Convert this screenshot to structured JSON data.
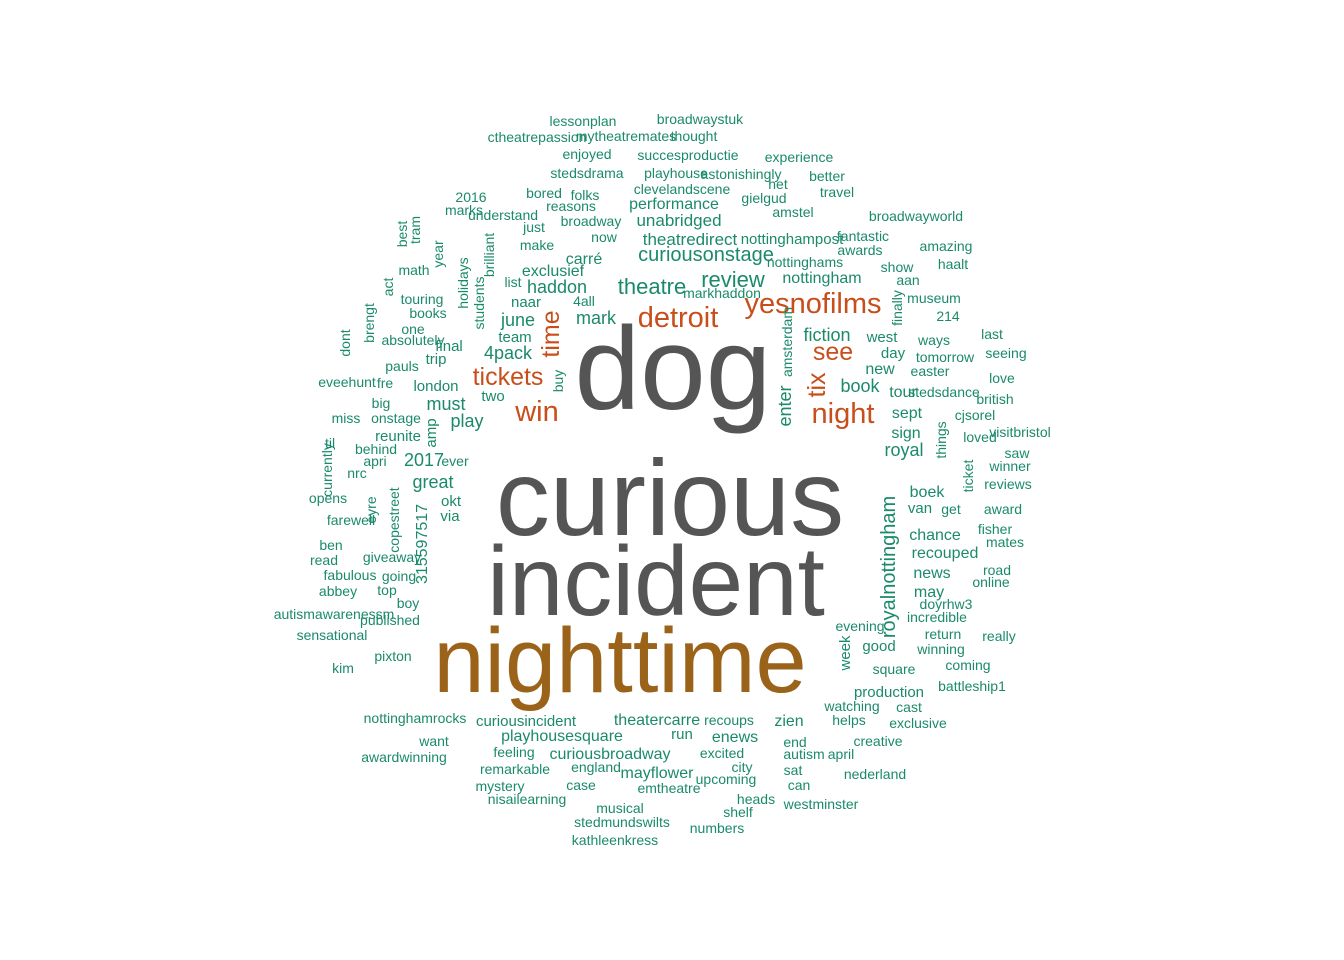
{
  "colors": {
    "grey": "#555555",
    "brown": "#9a6319",
    "orange": "#c84e1b",
    "green": "#1b8a6b"
  },
  "words": [
    {
      "text": "dog",
      "color": "grey"
    },
    {
      "text": "curious",
      "color": "grey"
    },
    {
      "text": "incident",
      "color": "grey"
    },
    {
      "text": "nighttime",
      "color": "brown"
    },
    {
      "text": "detroit",
      "color": "orange"
    },
    {
      "text": "yesnofilms",
      "color": "orange"
    },
    {
      "text": "win",
      "color": "orange"
    },
    {
      "text": "night",
      "color": "orange"
    },
    {
      "text": "see",
      "color": "orange"
    },
    {
      "text": "tickets",
      "color": "orange"
    },
    {
      "text": "time",
      "color": "orange"
    },
    {
      "text": "tix",
      "color": "orange"
    },
    {
      "text": "theatre",
      "color": "green"
    },
    {
      "text": "review",
      "color": "green"
    },
    {
      "text": "curiousonstage",
      "color": "green"
    },
    {
      "text": "royalnottingham",
      "color": "green"
    },
    {
      "text": "haddon",
      "color": "green"
    },
    {
      "text": "mark",
      "color": "green"
    },
    {
      "text": "june",
      "color": "green"
    },
    {
      "text": "4pack",
      "color": "green"
    },
    {
      "text": "fiction",
      "color": "green"
    },
    {
      "text": "book",
      "color": "green"
    },
    {
      "text": "enter",
      "color": "green"
    },
    {
      "text": "must",
      "color": "green"
    },
    {
      "text": "play",
      "color": "green"
    },
    {
      "text": "great",
      "color": "green"
    },
    {
      "text": "2017",
      "color": "green"
    },
    {
      "text": "royal",
      "color": "green"
    },
    {
      "text": "theatredirect",
      "color": "green"
    },
    {
      "text": "unabridged",
      "color": "green"
    },
    {
      "text": "performance",
      "color": "green"
    },
    {
      "text": "carré",
      "color": "green"
    },
    {
      "text": "exclusief",
      "color": "green"
    },
    {
      "text": "nottingham",
      "color": "green"
    },
    {
      "text": "theatercarre",
      "color": "green"
    },
    {
      "text": "curiousincident",
      "color": "green"
    },
    {
      "text": "playhousesquare",
      "color": "green"
    },
    {
      "text": "curiousbroadway",
      "color": "green"
    },
    {
      "text": "zien",
      "color": "green"
    },
    {
      "text": "enews",
      "color": "green"
    },
    {
      "text": "mayflower",
      "color": "green"
    },
    {
      "text": "315597517",
      "color": "green"
    },
    {
      "text": "boek",
      "color": "green"
    },
    {
      "text": "chance",
      "color": "green"
    },
    {
      "text": "recouped",
      "color": "green"
    },
    {
      "text": "news",
      "color": "green"
    },
    {
      "text": "may",
      "color": "green"
    },
    {
      "text": "production",
      "color": "green"
    },
    {
      "text": "good",
      "color": "green"
    },
    {
      "text": "week",
      "color": "green"
    },
    {
      "text": "sign",
      "color": "green"
    },
    {
      "text": "sept",
      "color": "green"
    },
    {
      "text": "tour",
      "color": "green"
    },
    {
      "text": "new",
      "color": "green"
    },
    {
      "text": "day",
      "color": "green"
    },
    {
      "text": "west",
      "color": "green"
    },
    {
      "text": "van",
      "color": "green"
    },
    {
      "text": "get",
      "color": "green"
    },
    {
      "text": "okt",
      "color": "green"
    },
    {
      "text": "via",
      "color": "green"
    },
    {
      "text": "reunite",
      "color": "green"
    },
    {
      "text": "amp",
      "color": "green"
    },
    {
      "text": "two",
      "color": "green"
    },
    {
      "text": "london",
      "color": "green"
    },
    {
      "text": "final",
      "color": "green"
    },
    {
      "text": "trip",
      "color": "green"
    },
    {
      "text": "team",
      "color": "green"
    },
    {
      "text": "naar",
      "color": "green"
    },
    {
      "text": "4all",
      "color": "green"
    },
    {
      "text": "list",
      "color": "green"
    },
    {
      "text": "make",
      "color": "green"
    },
    {
      "text": "just",
      "color": "green"
    },
    {
      "text": "now",
      "color": "green"
    },
    {
      "text": "broadway",
      "color": "green"
    },
    {
      "text": "reasons",
      "color": "green"
    },
    {
      "text": "bored",
      "color": "green"
    },
    {
      "text": "folks",
      "color": "green"
    },
    {
      "text": "clevelandscene",
      "color": "green"
    },
    {
      "text": "stedsdrama",
      "color": "green"
    },
    {
      "text": "playhouse",
      "color": "green"
    },
    {
      "text": "enjoyed",
      "color": "green"
    },
    {
      "text": "succesproductie",
      "color": "green"
    },
    {
      "text": "experience",
      "color": "green"
    },
    {
      "text": "ctheatrepassion",
      "color": "green"
    },
    {
      "text": "mytheatremates",
      "color": "green"
    },
    {
      "text": "thought",
      "color": "green"
    },
    {
      "text": "lessonplan",
      "color": "green"
    },
    {
      "text": "broadwaystuk",
      "color": "green"
    },
    {
      "text": "astonishingly",
      "color": "green"
    },
    {
      "text": "het",
      "color": "green"
    },
    {
      "text": "better",
      "color": "green"
    },
    {
      "text": "travel",
      "color": "green"
    },
    {
      "text": "gielgud",
      "color": "green"
    },
    {
      "text": "amstel",
      "color": "green"
    },
    {
      "text": "broadwayworld",
      "color": "green"
    },
    {
      "text": "nottinghampost",
      "color": "green"
    },
    {
      "text": "fantastic",
      "color": "green"
    },
    {
      "text": "awards",
      "color": "green"
    },
    {
      "text": "amazing",
      "color": "green"
    },
    {
      "text": "nottinghams",
      "color": "green"
    },
    {
      "text": "show",
      "color": "green"
    },
    {
      "text": "haalt",
      "color": "green"
    },
    {
      "text": "markhaddon",
      "color": "green"
    },
    {
      "text": "aan",
      "color": "green"
    },
    {
      "text": "museum",
      "color": "green"
    },
    {
      "text": "finally",
      "color": "green"
    },
    {
      "text": "214",
      "color": "green"
    },
    {
      "text": "amsterdam",
      "color": "green"
    },
    {
      "text": "last",
      "color": "green"
    },
    {
      "text": "ways",
      "color": "green"
    },
    {
      "text": "seeing",
      "color": "green"
    },
    {
      "text": "tomorrow",
      "color": "green"
    },
    {
      "text": "easter",
      "color": "green"
    },
    {
      "text": "love",
      "color": "green"
    },
    {
      "text": "stedsdance",
      "color": "green"
    },
    {
      "text": "british",
      "color": "green"
    },
    {
      "text": "cjsorel",
      "color": "green"
    },
    {
      "text": "things",
      "color": "green"
    },
    {
      "text": "visitbristol",
      "color": "green"
    },
    {
      "text": "loved",
      "color": "green"
    },
    {
      "text": "saw",
      "color": "green"
    },
    {
      "text": "winner",
      "color": "green"
    },
    {
      "text": "ticket",
      "color": "green"
    },
    {
      "text": "reviews",
      "color": "green"
    },
    {
      "text": "award",
      "color": "green"
    },
    {
      "text": "fisher",
      "color": "green"
    },
    {
      "text": "mates",
      "color": "green"
    },
    {
      "text": "road",
      "color": "green"
    },
    {
      "text": "online",
      "color": "green"
    },
    {
      "text": "doyrhw3",
      "color": "green"
    },
    {
      "text": "incredible",
      "color": "green"
    },
    {
      "text": "evening",
      "color": "green"
    },
    {
      "text": "return",
      "color": "green"
    },
    {
      "text": "really",
      "color": "green"
    },
    {
      "text": "winning",
      "color": "green"
    },
    {
      "text": "square",
      "color": "green"
    },
    {
      "text": "coming",
      "color": "green"
    },
    {
      "text": "battleship1",
      "color": "green"
    },
    {
      "text": "watching",
      "color": "green"
    },
    {
      "text": "cast",
      "color": "green"
    },
    {
      "text": "helps",
      "color": "green"
    },
    {
      "text": "exclusive",
      "color": "green"
    },
    {
      "text": "recoups",
      "color": "green"
    },
    {
      "text": "run",
      "color": "green"
    },
    {
      "text": "end",
      "color": "green"
    },
    {
      "text": "creative",
      "color": "green"
    },
    {
      "text": "excited",
      "color": "green"
    },
    {
      "text": "autism",
      "color": "green"
    },
    {
      "text": "april",
      "color": "green"
    },
    {
      "text": "city",
      "color": "green"
    },
    {
      "text": "sat",
      "color": "green"
    },
    {
      "text": "nederland",
      "color": "green"
    },
    {
      "text": "upcoming",
      "color": "green"
    },
    {
      "text": "can",
      "color": "green"
    },
    {
      "text": "heads",
      "color": "green"
    },
    {
      "text": "westminster",
      "color": "green"
    },
    {
      "text": "shelf",
      "color": "green"
    },
    {
      "text": "numbers",
      "color": "green"
    },
    {
      "text": "emtheatre",
      "color": "green"
    },
    {
      "text": "england",
      "color": "green"
    },
    {
      "text": "case",
      "color": "green"
    },
    {
      "text": "musical",
      "color": "green"
    },
    {
      "text": "stedmundswilts",
      "color": "green"
    },
    {
      "text": "kathleenkress",
      "color": "green"
    },
    {
      "text": "nisailearning",
      "color": "green"
    },
    {
      "text": "mystery",
      "color": "green"
    },
    {
      "text": "remarkable",
      "color": "green"
    },
    {
      "text": "feeling",
      "color": "green"
    },
    {
      "text": "want",
      "color": "green"
    },
    {
      "text": "awardwinning",
      "color": "green"
    },
    {
      "text": "nottinghamrocks",
      "color": "green"
    },
    {
      "text": "pixton",
      "color": "green"
    },
    {
      "text": "kim",
      "color": "green"
    },
    {
      "text": "sensational",
      "color": "green"
    },
    {
      "text": "autismawarenessm",
      "color": "green"
    },
    {
      "text": "published",
      "color": "green"
    },
    {
      "text": "boy",
      "color": "green"
    },
    {
      "text": "abbey",
      "color": "green"
    },
    {
      "text": "top",
      "color": "green"
    },
    {
      "text": "fabulous",
      "color": "green"
    },
    {
      "text": "going",
      "color": "green"
    },
    {
      "text": "read",
      "color": "green"
    },
    {
      "text": "giveaway",
      "color": "green"
    },
    {
      "text": "ben",
      "color": "green"
    },
    {
      "text": "farewell",
      "color": "green"
    },
    {
      "text": "eyre",
      "color": "green"
    },
    {
      "text": "copestreet",
      "color": "green"
    },
    {
      "text": "opens",
      "color": "green"
    },
    {
      "text": "currently",
      "color": "green"
    },
    {
      "text": "nrc",
      "color": "green"
    },
    {
      "text": "apri",
      "color": "green"
    },
    {
      "text": "ever",
      "color": "green"
    },
    {
      "text": "til",
      "color": "green"
    },
    {
      "text": "behind",
      "color": "green"
    },
    {
      "text": "miss",
      "color": "green"
    },
    {
      "text": "onstage",
      "color": "green"
    },
    {
      "text": "big",
      "color": "green"
    },
    {
      "text": "eveehunt",
      "color": "green"
    },
    {
      "text": "fre",
      "color": "green"
    },
    {
      "text": "pauls",
      "color": "green"
    },
    {
      "text": "dont",
      "color": "green"
    },
    {
      "text": "brengt",
      "color": "green"
    },
    {
      "text": "absolutely",
      "color": "green"
    },
    {
      "text": "one",
      "color": "green"
    },
    {
      "text": "act",
      "color": "green"
    },
    {
      "text": "books",
      "color": "green"
    },
    {
      "text": "touring",
      "color": "green"
    },
    {
      "text": "math",
      "color": "green"
    },
    {
      "text": "year",
      "color": "green"
    },
    {
      "text": "holidays",
      "color": "green"
    },
    {
      "text": "students",
      "color": "green"
    },
    {
      "text": "brilliant",
      "color": "green"
    },
    {
      "text": "best",
      "color": "green"
    },
    {
      "text": "tram",
      "color": "green"
    },
    {
      "text": "marks",
      "color": "green"
    },
    {
      "text": "2016",
      "color": "green"
    },
    {
      "text": "understand",
      "color": "green"
    },
    {
      "text": "buy",
      "color": "green"
    },
    {
      "text": "3rd",
      "color": "green"
    }
  ]
}
